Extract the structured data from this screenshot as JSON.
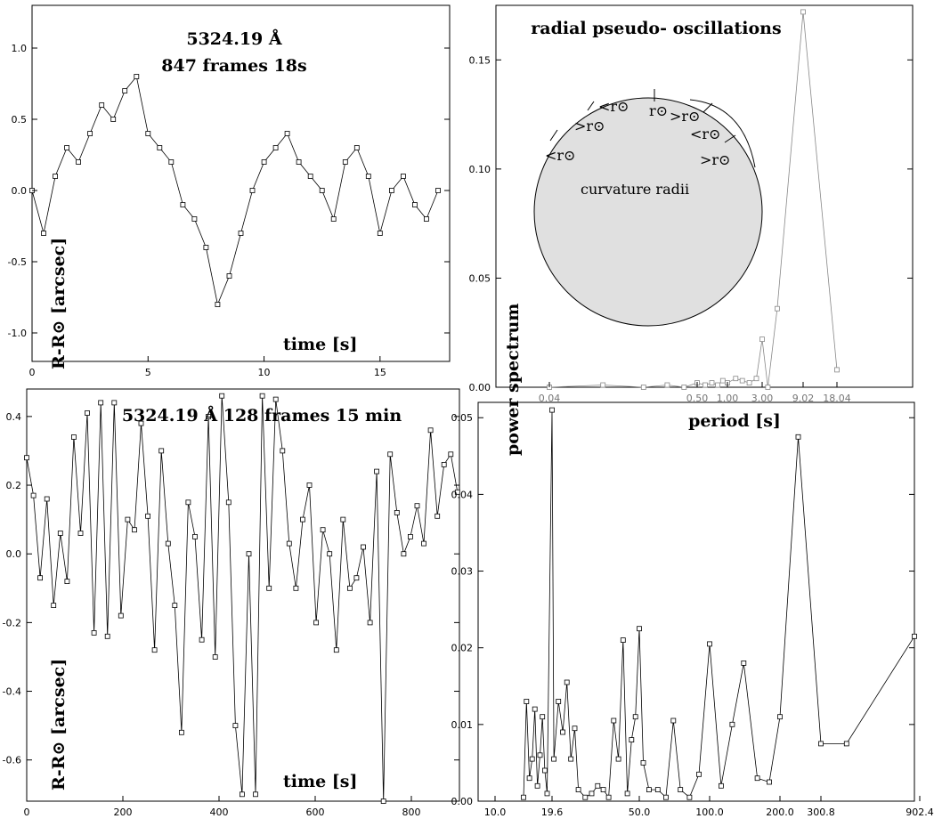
{
  "chart_data": [
    {
      "type": "line",
      "panel": "top-left",
      "annotations": [
        "5324.19 Å",
        "847 frames 18s"
      ],
      "xlabel": "time [s]",
      "ylabel": "R-R⊙ [arcsec]",
      "xlim": [
        0,
        18
      ],
      "ylim": [
        -1.2,
        1.3
      ],
      "xticks": [
        "0",
        "5",
        "10",
        "15"
      ],
      "yticks": [
        "1.0",
        "0.5",
        "0.0",
        "-0.5",
        "-1.0"
      ],
      "x": [
        0,
        0.5,
        1,
        1.5,
        2,
        2.5,
        3,
        3.5,
        4,
        4.5,
        5,
        5.5,
        6,
        6.5,
        7,
        7.5,
        8,
        8.5,
        9,
        9.5,
        10,
        10.5,
        11,
        11.5,
        12,
        12.5,
        13,
        13.5,
        14,
        14.5,
        15,
        15.5,
        16,
        16.5,
        17,
        17.5
      ],
      "values": [
        0.0,
        -0.3,
        0.1,
        0.3,
        0.2,
        0.4,
        0.6,
        0.5,
        0.7,
        0.8,
        0.4,
        0.3,
        0.2,
        -0.1,
        -0.2,
        -0.4,
        -0.8,
        -0.6,
        -0.3,
        0.0,
        0.2,
        0.3,
        0.4,
        0.2,
        0.1,
        0.0,
        -0.2,
        0.2,
        0.3,
        0.1,
        -0.3,
        0.0,
        0.1,
        -0.1,
        -0.2,
        0.0
      ]
    },
    {
      "type": "line",
      "panel": "top-right",
      "title": "radial pseudo- oscillations",
      "xlabel": "period [s]",
      "ylabel": "power spectrum",
      "ylim": [
        0,
        0.175
      ],
      "xticks": [
        "0.04",
        "0.50",
        "1.00",
        "3.00",
        "9.02",
        "18.04"
      ],
      "yticks": [
        "0.15",
        "0.10",
        "0.05",
        "0.00"
      ],
      "inset_labels": [
        "curvature radii",
        "<r⊙",
        ">r⊙",
        "<r⊙",
        "r⊙",
        ">r⊙",
        "<r⊙",
        ">r⊙"
      ],
      "x": [
        0.04,
        0.1,
        0.2,
        0.3,
        0.4,
        0.5,
        0.6,
        0.7,
        0.8,
        0.9,
        1.0,
        1.3,
        1.6,
        2.0,
        2.5,
        3.0,
        3.5,
        4.5,
        9.02,
        18.04
      ],
      "values": [
        0.0,
        0.001,
        0.0,
        0.001,
        0.0,
        0.002,
        0.001,
        0.002,
        0.001,
        0.003,
        0.002,
        0.004,
        0.003,
        0.002,
        0.004,
        0.022,
        0.0,
        0.036,
        0.172,
        0.008
      ]
    },
    {
      "type": "line",
      "panel": "bottom-left",
      "annotations": [
        "5324.19 Å 128 frames 15 min"
      ],
      "xlabel": "time [s]",
      "ylabel": "R-R⊙ [arcsec]",
      "xlim": [
        0,
        900
      ],
      "ylim": [
        -0.72,
        0.48
      ],
      "xticks": [
        "0",
        "200",
        "400",
        "600",
        "800"
      ],
      "yticks": [
        "0.4",
        "0.2",
        "0.0",
        "-0.2",
        "-0.4",
        "-0.6"
      ],
      "x": [
        0,
        14,
        28,
        42,
        56,
        70,
        84,
        98,
        112,
        126,
        140,
        154,
        168,
        182,
        196,
        210,
        224,
        238,
        252,
        266,
        280,
        294,
        308,
        322,
        336,
        350,
        364,
        378,
        392,
        406,
        420,
        434,
        448,
        462,
        476,
        490,
        504,
        518,
        532,
        546,
        560,
        574,
        588,
        602,
        616,
        630,
        644,
        658,
        672,
        686,
        700,
        714,
        728,
        742,
        756,
        770,
        784,
        798,
        812,
        826,
        840,
        854,
        868,
        882,
        896
      ],
      "values": [
        0.28,
        0.17,
        -0.07,
        0.16,
        -0.15,
        0.06,
        -0.08,
        0.34,
        0.06,
        0.41,
        -0.23,
        0.44,
        -0.24,
        0.44,
        -0.18,
        0.1,
        0.07,
        0.38,
        0.11,
        -0.28,
        0.3,
        0.03,
        -0.15,
        -0.52,
        0.15,
        0.05,
        -0.25,
        0.4,
        -0.3,
        0.46,
        0.15,
        -0.5,
        -0.7,
        0.0,
        -0.7,
        0.46,
        -0.1,
        0.45,
        0.3,
        0.03,
        -0.1,
        0.1,
        0.2,
        -0.2,
        0.07,
        0.0,
        -0.28,
        0.1,
        -0.1,
        -0.07,
        0.02,
        -0.2,
        0.24,
        -0.72,
        0.29,
        0.12,
        0.0,
        0.05,
        0.14,
        0.03,
        0.36,
        0.11,
        0.26,
        0.29,
        0.18
      ]
    },
    {
      "type": "line",
      "panel": "bottom-right",
      "xlabel": "",
      "ylabel": "",
      "ylim": [
        0,
        0.052
      ],
      "xticks": [
        "10.0",
        "19.6",
        "50.0",
        "100.0",
        "200.0",
        "300.8",
        "902.4"
      ],
      "yticks": [
        "0.05",
        "0.04",
        "0.03",
        "0.02",
        "0.01",
        "0.00"
      ],
      "x": [
        14,
        14.5,
        15,
        15.5,
        16,
        16.5,
        17,
        17.5,
        18,
        18.5,
        19.6,
        20,
        21,
        22,
        23,
        24,
        25,
        26,
        28,
        30,
        32,
        34,
        36,
        38,
        40,
        42,
        44,
        46,
        48,
        50,
        52,
        55,
        60,
        65,
        70,
        75,
        82,
        90,
        100,
        112,
        125,
        140,
        160,
        180,
        200,
        240,
        300.8,
        400,
        902.4
      ],
      "values": [
        0.0005,
        0.013,
        0.003,
        0.0055,
        0.012,
        0.002,
        0.006,
        0.011,
        0.004,
        0.001,
        0.051,
        0.0055,
        0.013,
        0.009,
        0.0155,
        0.0055,
        0.0095,
        0.0015,
        0.0005,
        0.001,
        0.002,
        0.0015,
        0.0005,
        0.0105,
        0.0055,
        0.021,
        0.001,
        0.008,
        0.011,
        0.0225,
        0.005,
        0.0015,
        0.0015,
        0.0005,
        0.0105,
        0.0015,
        0.0005,
        0.0035,
        0.0205,
        0.002,
        0.01,
        0.018,
        0.003,
        0.0025,
        0.011,
        0.0475,
        0.0075,
        0.0075,
        0.0215
      ]
    }
  ]
}
